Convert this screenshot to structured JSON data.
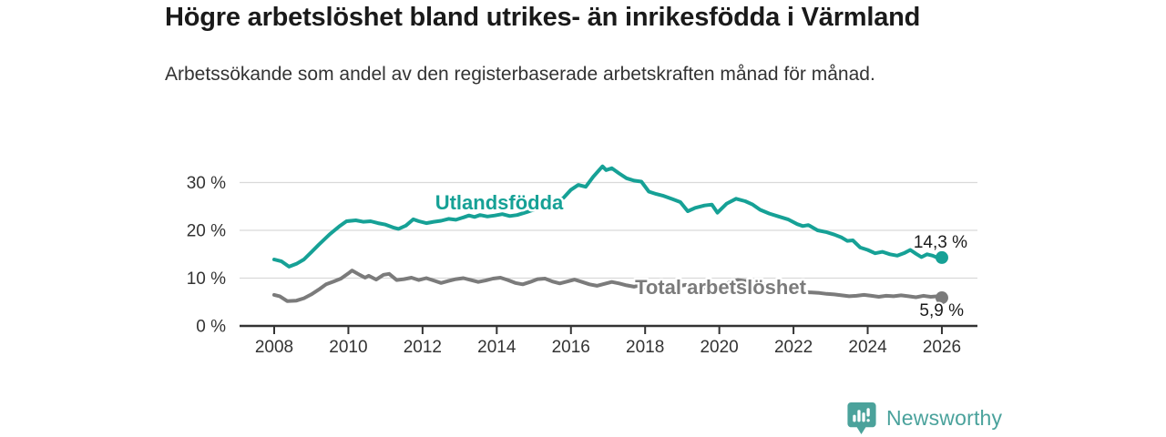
{
  "header": {
    "title": "Högre arbetslöshet bland utrikes- än inrikesfödda i Värmland",
    "subtitle": "Arbetssökande som andel av den registerbaserade arbetskraften månad för månad."
  },
  "chart_data": {
    "type": "line",
    "title": "Högre arbetslöshet bland utrikes- än inrikesfödda i Värmland",
    "subtitle": "Arbetssökande som andel av den registerbaserade arbetskraften månad för månad.",
    "unit": "%",
    "grid": "horizontal-only",
    "legend": "inline-labels-on-lines",
    "x_axis": {
      "ticks": [
        2008,
        2010,
        2012,
        2014,
        2016,
        2018,
        2020,
        2022,
        2024,
        2026
      ],
      "range": [
        2007.1,
        2027.0
      ]
    },
    "y_axis": {
      "tick_values": [
        0,
        10,
        20,
        30
      ],
      "tick_labels": [
        "0 %",
        "10 %",
        "20 %",
        "30 %"
      ],
      "range": [
        0,
        35
      ]
    },
    "colors": {
      "foreign_born": "#16a196",
      "total": "#7b7b7b",
      "grid": "#d9d9d9",
      "axis": "#333333"
    },
    "series": [
      {
        "name": "Utlandsfödda",
        "color": "#16a196",
        "end_label": "14,3 %",
        "end_value": 14.3,
        "points": [
          [
            2008.0,
            13.9
          ],
          [
            2008.2,
            13.5
          ],
          [
            2008.4,
            12.4
          ],
          [
            2008.6,
            13.0
          ],
          [
            2008.8,
            13.9
          ],
          [
            2009.0,
            15.4
          ],
          [
            2009.2,
            17.0
          ],
          [
            2009.5,
            19.2
          ],
          [
            2009.75,
            20.8
          ],
          [
            2009.95,
            21.9
          ],
          [
            2010.2,
            22.1
          ],
          [
            2010.4,
            21.8
          ],
          [
            2010.6,
            21.9
          ],
          [
            2010.8,
            21.5
          ],
          [
            2011.0,
            21.2
          ],
          [
            2011.2,
            20.6
          ],
          [
            2011.35,
            20.3
          ],
          [
            2011.55,
            21.0
          ],
          [
            2011.75,
            22.3
          ],
          [
            2011.9,
            21.9
          ],
          [
            2012.1,
            21.5
          ],
          [
            2012.3,
            21.8
          ],
          [
            2012.5,
            22.0
          ],
          [
            2012.7,
            22.4
          ],
          [
            2012.9,
            22.2
          ],
          [
            2013.1,
            22.7
          ],
          [
            2013.25,
            23.1
          ],
          [
            2013.4,
            22.8
          ],
          [
            2013.55,
            23.2
          ],
          [
            2013.75,
            22.9
          ],
          [
            2013.95,
            23.1
          ],
          [
            2014.15,
            23.4
          ],
          [
            2014.35,
            23.0
          ],
          [
            2014.55,
            23.2
          ],
          [
            2014.8,
            23.8
          ],
          [
            2015.0,
            24.3
          ],
          [
            2015.2,
            24.9
          ],
          [
            2015.4,
            25.3
          ],
          [
            2015.6,
            25.9
          ],
          [
            2015.8,
            26.8
          ],
          [
            2016.0,
            28.5
          ],
          [
            2016.2,
            29.5
          ],
          [
            2016.4,
            29.1
          ],
          [
            2016.6,
            31.2
          ],
          [
            2016.85,
            33.4
          ],
          [
            2016.95,
            32.6
          ],
          [
            2017.1,
            33.0
          ],
          [
            2017.3,
            31.9
          ],
          [
            2017.5,
            30.9
          ],
          [
            2017.7,
            30.4
          ],
          [
            2017.9,
            30.2
          ],
          [
            2018.1,
            28.1
          ],
          [
            2018.3,
            27.6
          ],
          [
            2018.5,
            27.2
          ],
          [
            2018.75,
            26.5
          ],
          [
            2018.95,
            25.9
          ],
          [
            2019.15,
            24.0
          ],
          [
            2019.35,
            24.7
          ],
          [
            2019.6,
            25.2
          ],
          [
            2019.8,
            25.4
          ],
          [
            2019.95,
            23.7
          ],
          [
            2020.2,
            25.6
          ],
          [
            2020.45,
            26.6
          ],
          [
            2020.7,
            26.1
          ],
          [
            2020.9,
            25.4
          ],
          [
            2021.1,
            24.3
          ],
          [
            2021.35,
            23.5
          ],
          [
            2021.6,
            22.9
          ],
          [
            2021.85,
            22.3
          ],
          [
            2022.1,
            21.3
          ],
          [
            2022.25,
            20.9
          ],
          [
            2022.4,
            21.1
          ],
          [
            2022.65,
            20.0
          ],
          [
            2022.9,
            19.6
          ],
          [
            2023.1,
            19.1
          ],
          [
            2023.3,
            18.5
          ],
          [
            2023.45,
            17.8
          ],
          [
            2023.6,
            17.9
          ],
          [
            2023.8,
            16.4
          ],
          [
            2024.0,
            15.9
          ],
          [
            2024.2,
            15.2
          ],
          [
            2024.4,
            15.5
          ],
          [
            2024.6,
            15.0
          ],
          [
            2024.8,
            14.7
          ],
          [
            2025.0,
            15.3
          ],
          [
            2025.15,
            15.9
          ],
          [
            2025.3,
            15.1
          ],
          [
            2025.45,
            14.4
          ],
          [
            2025.6,
            15.0
          ],
          [
            2025.75,
            14.7
          ],
          [
            2025.9,
            14.2
          ],
          [
            2026.0,
            14.3
          ]
        ]
      },
      {
        "name": "Total arbetslöshet",
        "color": "#7b7b7b",
        "end_label": "5,9 %",
        "end_value": 5.9,
        "points": [
          [
            2008.0,
            6.5
          ],
          [
            2008.15,
            6.2
          ],
          [
            2008.35,
            5.2
          ],
          [
            2008.6,
            5.3
          ],
          [
            2008.8,
            5.8
          ],
          [
            2009.0,
            6.6
          ],
          [
            2009.2,
            7.6
          ],
          [
            2009.4,
            8.7
          ],
          [
            2009.6,
            9.3
          ],
          [
            2009.8,
            9.9
          ],
          [
            2010.0,
            11.0
          ],
          [
            2010.1,
            11.6
          ],
          [
            2010.3,
            10.7
          ],
          [
            2010.45,
            10.1
          ],
          [
            2010.55,
            10.5
          ],
          [
            2010.75,
            9.7
          ],
          [
            2010.95,
            10.7
          ],
          [
            2011.1,
            10.9
          ],
          [
            2011.3,
            9.6
          ],
          [
            2011.5,
            9.8
          ],
          [
            2011.7,
            10.1
          ],
          [
            2011.9,
            9.6
          ],
          [
            2012.1,
            10.0
          ],
          [
            2012.3,
            9.5
          ],
          [
            2012.5,
            9.0
          ],
          [
            2012.7,
            9.4
          ],
          [
            2012.9,
            9.8
          ],
          [
            2013.1,
            10.0
          ],
          [
            2013.3,
            9.6
          ],
          [
            2013.5,
            9.2
          ],
          [
            2013.7,
            9.5
          ],
          [
            2013.9,
            9.9
          ],
          [
            2014.1,
            10.1
          ],
          [
            2014.3,
            9.6
          ],
          [
            2014.5,
            9.0
          ],
          [
            2014.7,
            8.7
          ],
          [
            2014.9,
            9.2
          ],
          [
            2015.1,
            9.8
          ],
          [
            2015.3,
            9.9
          ],
          [
            2015.5,
            9.3
          ],
          [
            2015.7,
            8.9
          ],
          [
            2015.9,
            9.3
          ],
          [
            2016.1,
            9.7
          ],
          [
            2016.3,
            9.2
          ],
          [
            2016.5,
            8.7
          ],
          [
            2016.7,
            8.4
          ],
          [
            2016.9,
            8.8
          ],
          [
            2017.1,
            9.2
          ],
          [
            2017.3,
            8.9
          ],
          [
            2017.5,
            8.5
          ],
          [
            2017.7,
            8.2
          ],
          [
            2017.9,
            8.6
          ],
          [
            2018.1,
            8.9
          ],
          [
            2018.3,
            8.5
          ],
          [
            2018.5,
            8.1
          ],
          [
            2018.7,
            7.9
          ],
          [
            2018.9,
            8.3
          ],
          [
            2019.1,
            8.6
          ],
          [
            2019.3,
            8.2
          ],
          [
            2019.5,
            7.9
          ],
          [
            2019.7,
            8.1
          ],
          [
            2019.9,
            8.4
          ],
          [
            2020.1,
            8.5
          ],
          [
            2020.3,
            9.2
          ],
          [
            2020.5,
            9.6
          ],
          [
            2020.7,
            9.4
          ],
          [
            2020.9,
            9.1
          ],
          [
            2021.1,
            8.8
          ],
          [
            2021.3,
            8.5
          ],
          [
            2021.5,
            8.2
          ],
          [
            2021.7,
            7.9
          ],
          [
            2021.9,
            7.6
          ],
          [
            2022.1,
            7.3
          ],
          [
            2022.3,
            7.1
          ],
          [
            2022.5,
            7.0
          ],
          [
            2022.7,
            6.9
          ],
          [
            2022.9,
            6.7
          ],
          [
            2023.1,
            6.6
          ],
          [
            2023.3,
            6.4
          ],
          [
            2023.5,
            6.2
          ],
          [
            2023.7,
            6.3
          ],
          [
            2023.9,
            6.5
          ],
          [
            2024.1,
            6.3
          ],
          [
            2024.3,
            6.1
          ],
          [
            2024.5,
            6.3
          ],
          [
            2024.7,
            6.2
          ],
          [
            2024.9,
            6.4
          ],
          [
            2025.1,
            6.2
          ],
          [
            2025.3,
            6.0
          ],
          [
            2025.5,
            6.3
          ],
          [
            2025.7,
            6.1
          ],
          [
            2025.9,
            6.2
          ],
          [
            2026.0,
            5.9
          ]
        ]
      }
    ]
  },
  "footer": {
    "logo_text": "Newsworthy"
  }
}
